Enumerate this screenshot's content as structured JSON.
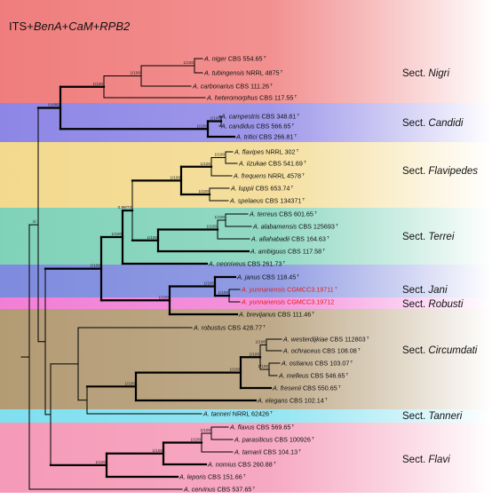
{
  "title": {
    "prefix": "ITS+",
    "genes": [
      "BenA",
      "CaM",
      "RPB2"
    ],
    "separator": "+"
  },
  "section_prefix": "Sect.",
  "colors": {
    "band_edge": "#ffffff",
    "highlight": "#e01e1e",
    "text": "#111111"
  },
  "sections": [
    {
      "name": "Nigri",
      "color": "#f07d7d"
    },
    {
      "name": "Candidi",
      "color": "#8d86e6"
    },
    {
      "name": "Flavipedes",
      "color": "#f3d98d"
    },
    {
      "name": "Terrei",
      "color": "#7fd2b8"
    },
    {
      "name": "Jani",
      "color": "#7e8bde"
    },
    {
      "name": "Robusti",
      "color": "#f27fd6"
    },
    {
      "name": "Circumdati",
      "color": "#b39b74"
    },
    {
      "name": "Tanneri",
      "color": "#7fe0f0"
    },
    {
      "name": "Flavi",
      "color": "#f59ab8"
    }
  ],
  "taxa": [
    {
      "id": "niger",
      "species": "A. niger",
      "strain": "CBS 554.65",
      "type": "T"
    },
    {
      "id": "tubingensis",
      "species": "A. tubingensis",
      "strain": "NRRL 4875",
      "type": "T"
    },
    {
      "id": "carbonarius",
      "species": "A. carbonarius",
      "strain": "CBS 111.26",
      "type": "T"
    },
    {
      "id": "heteromorphus",
      "species": "A. heteromorphus",
      "strain": "CBS 117.55",
      "type": "T"
    },
    {
      "id": "campestris",
      "species": "A. campestris",
      "strain": "CBS 348.81",
      "type": "T"
    },
    {
      "id": "candidus",
      "species": "A. candidus",
      "strain": "CBS 566.65",
      "type": "T"
    },
    {
      "id": "tritici",
      "species": "A. tritici",
      "strain": "CBS 266.81",
      "type": "T"
    },
    {
      "id": "flavipes",
      "species": "A. flavipes",
      "strain": "NRRL 302",
      "type": "T"
    },
    {
      "id": "iizukae",
      "species": "A. iizukae",
      "strain": "CBS 541.69",
      "type": "T"
    },
    {
      "id": "frequens",
      "species": "A. frequens",
      "strain": "NRRL 4578",
      "type": "T"
    },
    {
      "id": "luppii",
      "species": "A. luppii",
      "strain": "CBS 653.74",
      "type": "T"
    },
    {
      "id": "spelaeus",
      "species": "A. spelaeus",
      "strain": "CBS 134371",
      "type": "T"
    },
    {
      "id": "terreus",
      "species": "A. terreus",
      "strain": "CBS 601.65",
      "type": "T"
    },
    {
      "id": "alabamensis",
      "species": "A. alabamensis",
      "strain": "CBS 125693",
      "type": "T"
    },
    {
      "id": "allahabadii",
      "species": "A. allahabadii",
      "strain": "CBS 164.63",
      "type": "T"
    },
    {
      "id": "ambiguus",
      "species": "A. ambiguus",
      "strain": "CBS 117.58",
      "type": "T"
    },
    {
      "id": "neoniveus",
      "species": "A. neoniveus",
      "strain": "CBS 261.73",
      "type": "T"
    },
    {
      "id": "janus",
      "species": "A. janus",
      "strain": "CBS 118.45",
      "type": "T"
    },
    {
      "id": "yunnanensis1",
      "species": "A. yunnanensis",
      "strain": "CGMCC3.19711",
      "type": "T",
      "highlight": true
    },
    {
      "id": "yunnanensis2",
      "species": "A. yunnanensis",
      "strain": "CGMCC3.19712",
      "type": "",
      "highlight": true
    },
    {
      "id": "brevijanus",
      "species": "A. brevijanus",
      "strain": "CBS 111.46",
      "type": "T"
    },
    {
      "id": "robustus",
      "species": "A. robustus",
      "strain": "CBS 428.77",
      "type": "T"
    },
    {
      "id": "westerdijkiae",
      "species": "A. westerdijkiae",
      "strain": "CBS 112803",
      "type": "T"
    },
    {
      "id": "ochraceus",
      "species": "A. ochraceus",
      "strain": "CBS 108.08",
      "type": "T"
    },
    {
      "id": "ostianus",
      "species": "A. ostianus",
      "strain": "CBS 103.07",
      "type": "T"
    },
    {
      "id": "melleus",
      "species": "A. melleus",
      "strain": "CBS 546.65",
      "type": "T"
    },
    {
      "id": "fresenii",
      "species": "A. fresenii",
      "strain": "CBS 550.65",
      "type": "T"
    },
    {
      "id": "elegans",
      "species": "A. elegans",
      "strain": "CBS 102.14",
      "type": "T"
    },
    {
      "id": "tanneri",
      "species": "A. tanneri",
      "strain": "NRRL 62426",
      "type": "T"
    },
    {
      "id": "flavus",
      "species": "A. flavus",
      "strain": "CBS 569.65",
      "type": "T"
    },
    {
      "id": "parasiticus",
      "species": "A. parasiticus",
      "strain": "CBS 100926",
      "type": "T"
    },
    {
      "id": "tamarii",
      "species": "A. tamarii",
      "strain": "CBS 104.13",
      "type": "T"
    },
    {
      "id": "nomius",
      "species": "A. nomius",
      "strain": "CBS 260.88",
      "type": "T"
    },
    {
      "id": "leporis",
      "species": "A. leporis",
      "strain": "CBS 151.66",
      "type": "T"
    },
    {
      "id": "cervinus",
      "species": "A. cervinus",
      "strain": "CBS 537.65",
      "type": "T"
    }
  ],
  "support_values": [
    {
      "node": "n_nig_tub",
      "text": "1/100"
    },
    {
      "node": "n_nig3",
      "text": "1/100"
    },
    {
      "node": "n_nig4",
      "text": "1/100"
    },
    {
      "node": "n_cand2",
      "text": "1/100"
    },
    {
      "node": "n_cand3",
      "text": "1/100"
    },
    {
      "node": "n_nig_cand",
      "text": "0.8/85"
    },
    {
      "node": "n_flav_iiz",
      "text": "1/100"
    },
    {
      "node": "n_flav3",
      "text": "1/100"
    },
    {
      "node": "n_lup_spe",
      "text": "1/100"
    },
    {
      "node": "n_flavip",
      "text": "1/100"
    },
    {
      "node": "n_ter_ala",
      "text": "1/100"
    },
    {
      "node": "n_ter3",
      "text": "1/100"
    },
    {
      "node": "n_terrei",
      "text": "1/100"
    },
    {
      "node": "n_fla_ter",
      "text": "0.99/73"
    },
    {
      "node": "n_ftn",
      "text": "1/100"
    },
    {
      "node": "n_yun",
      "text": "1/100"
    },
    {
      "node": "n_jan_yun",
      "text": "1/100"
    },
    {
      "node": "n_jani",
      "text": "1/100"
    },
    {
      "node": "n_ftj",
      "text": "1/100"
    },
    {
      "node": "n_wes_och",
      "text": "1/100"
    },
    {
      "node": "n_ost_mel",
      "text": "1/100"
    },
    {
      "node": "n_circ4",
      "text": "1/100"
    },
    {
      "node": "n_circ5",
      "text": "1/100"
    },
    {
      "node": "n_circ",
      "text": "1/100"
    },
    {
      "node": "n_flavus_par",
      "text": "1/100"
    },
    {
      "node": "n_flavi3",
      "text": "1/100"
    },
    {
      "node": "n_flavi4",
      "text": "1/100"
    },
    {
      "node": "n_flavi",
      "text": "1/100"
    },
    {
      "node": "n_ingroup",
      "text": "1/-"
    }
  ]
}
